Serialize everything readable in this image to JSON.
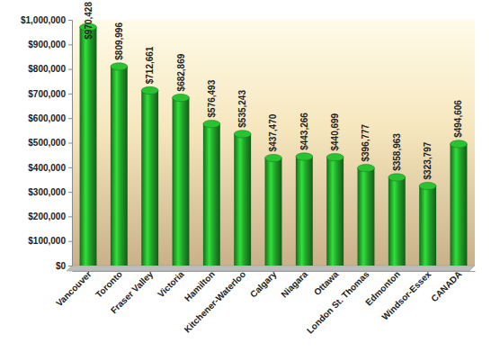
{
  "chart_data": {
    "type": "bar",
    "categories": [
      "Vancouver",
      "Toronto",
      "Fraser Valley",
      "Victoria",
      "Hamilton",
      "Kitchener-Waterloo",
      "Calgary",
      "Niagara",
      "Ottawa",
      "London St. Thomas",
      "Edmonton",
      "Windsor-Essex",
      "CANADA"
    ],
    "values": [
      970428,
      809996,
      712661,
      682869,
      576493,
      535243,
      437470,
      443266,
      440699,
      396777,
      358963,
      323797,
      494606
    ],
    "value_labels": [
      "$970,428",
      "$809,996",
      "$712,661",
      "$682,869",
      "$576,493",
      "$535,243",
      "$437,470",
      "$443,266",
      "$440,699",
      "$396,777",
      "$358,963",
      "$323,797",
      "$494,606"
    ],
    "color": "#22a32a",
    "ylim": [
      0,
      1000000
    ],
    "yticks": [
      {
        "value": 0,
        "label": "$0"
      },
      {
        "value": 100000,
        "label": "$100,000"
      },
      {
        "value": 200000,
        "label": "$200,000"
      },
      {
        "value": 300000,
        "label": "$300,000"
      },
      {
        "value": 400000,
        "label": "$400,000"
      },
      {
        "value": 500000,
        "label": "$500,000"
      },
      {
        "value": 600000,
        "label": "$600,000"
      },
      {
        "value": 700000,
        "label": "$700,000"
      },
      {
        "value": 800000,
        "label": "$800,000"
      },
      {
        "value": 900000,
        "label": "$900,000"
      },
      {
        "value": 1000000,
        "label": "$1,000,000"
      }
    ],
    "grid": false,
    "data_labels": true
  }
}
